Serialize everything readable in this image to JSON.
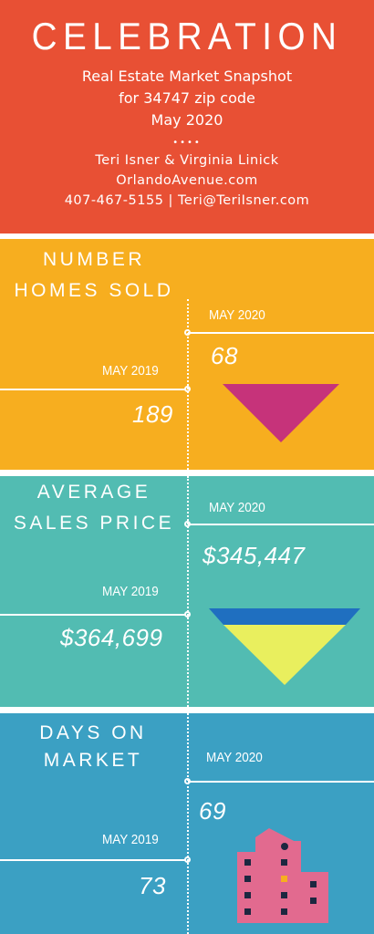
{
  "header": {
    "title": "CELEBRATION",
    "subtitle_line1": "Real Estate Market Snapshot",
    "subtitle_line2": "for 34747 zip code",
    "subtitle_line3": "May 2020",
    "dots": "••••",
    "agents": "Teri Isner & Virginia Linick",
    "website": "OrlandoAvenue.com",
    "contact": "407-467-5155 | Teri@TeriIsner.com"
  },
  "sections": {
    "homes_sold": {
      "heading_line1": "NUMBER",
      "heading_line2": "HOMES SOLD",
      "current_label": "MAY 2020",
      "current_value": "68",
      "previous_label": "MAY 2019",
      "previous_value": "189"
    },
    "avg_price": {
      "heading_line1": "AVERAGE",
      "heading_line2": "SALES PRICE",
      "current_label": "MAY 2020",
      "current_value": "$345,447",
      "previous_label": "MAY 2019",
      "previous_value": "$364,699"
    },
    "days_on_market": {
      "heading_line1": "DAYS ON",
      "heading_line2": "MARKET",
      "current_label": "MAY 2020",
      "current_value": "69",
      "previous_label": "MAY 2019",
      "previous_value": "73"
    }
  },
  "colors": {
    "header_bg": "#e85034",
    "homes_sold_bg": "#f7ae1f",
    "avg_price_bg": "#52bcb2",
    "days_on_market_bg": "#3ba0c3",
    "down_arrow_magenta": "#c6337a",
    "down_arrow_yellow": "#e9ef5e",
    "down_arrow_blue": "#1f6fc0",
    "building_pink": "#e26a8f"
  },
  "icons": [
    "down-triangle-icon",
    "down-triangle-icon",
    "building-icon"
  ]
}
